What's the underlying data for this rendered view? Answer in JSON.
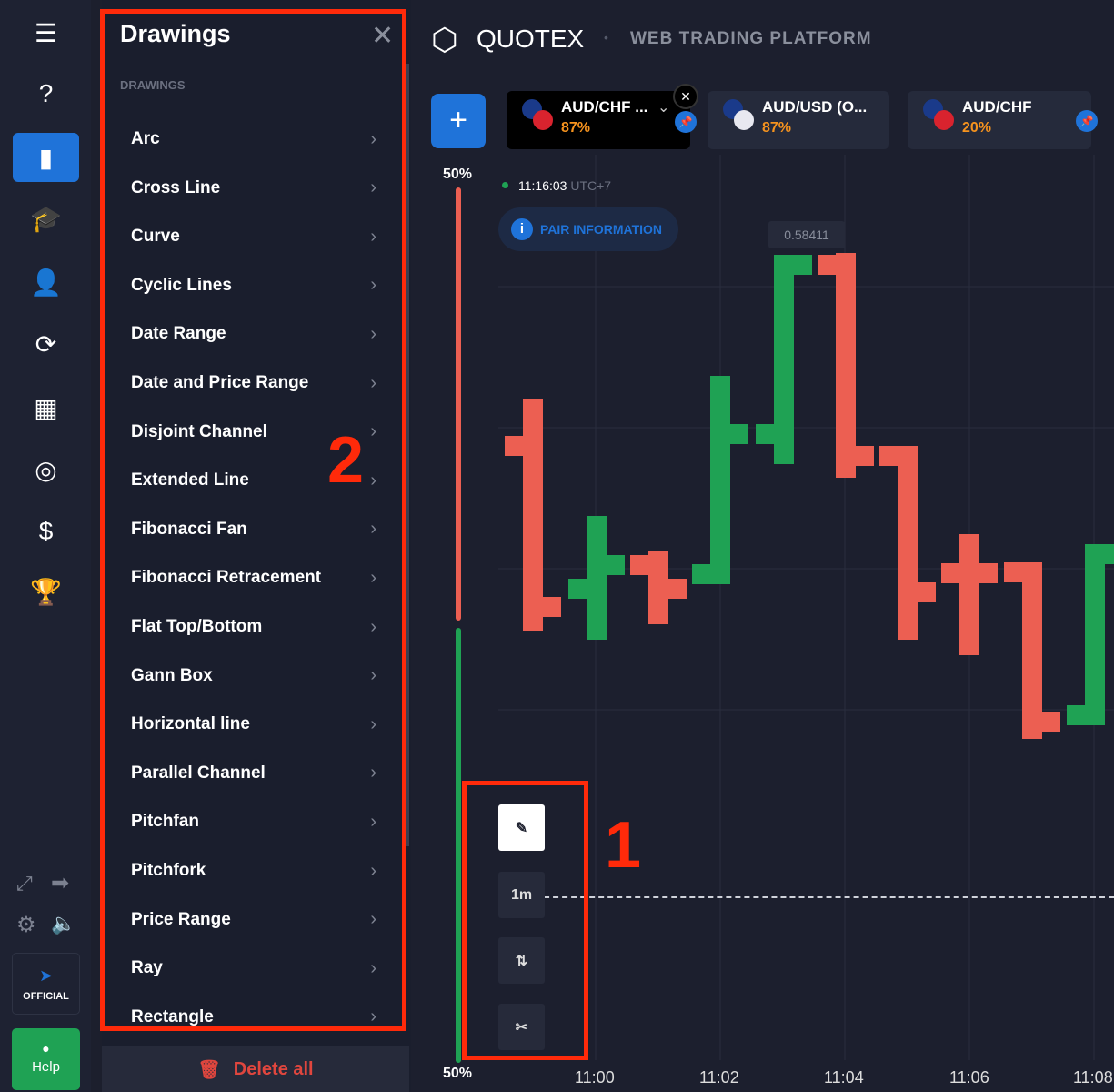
{
  "sidebar": {
    "items": [
      {
        "icon": "menu-icon",
        "glyph": "☰"
      },
      {
        "icon": "help-chat-icon",
        "glyph": "?"
      },
      {
        "icon": "chart-icon",
        "glyph": "▮"
      },
      {
        "icon": "education-icon",
        "glyph": "🎓"
      },
      {
        "icon": "user-icon",
        "glyph": "👤"
      },
      {
        "icon": "refresh-icon",
        "glyph": "⟳"
      },
      {
        "icon": "market-icon",
        "glyph": "▦"
      },
      {
        "icon": "signal-icon",
        "glyph": "◎"
      },
      {
        "icon": "coins-icon",
        "glyph": "$"
      },
      {
        "icon": "trophy-icon",
        "glyph": "🏆"
      }
    ],
    "official_label": "OFFICIAL",
    "help_label": "Help"
  },
  "panel": {
    "title": "Drawings",
    "section": "DRAWINGS",
    "items": [
      "Arc",
      "Cross Line",
      "Curve",
      "Cyclic Lines",
      "Date Range",
      "Date and Price Range",
      "Disjoint Channel",
      "Extended Line",
      "Fibonacci Fan",
      "Fibonacci Retracement",
      "Flat Top/Bottom",
      "Gann Box",
      "Horizontal line",
      "Parallel Channel",
      "Pitchfan",
      "Pitchfork",
      "Price Range",
      "Ray",
      "Rectangle"
    ],
    "delete_all": "Delete all"
  },
  "header": {
    "brand": "QUOTEX",
    "subtitle": "WEB TRADING PLATFORM"
  },
  "tabs": [
    {
      "name": "AUD/CHF ...",
      "payout": "87%"
    },
    {
      "name": "AUD/USD (O...",
      "payout": "87%"
    },
    {
      "name": "AUD/CHF",
      "payout": "20%"
    }
  ],
  "chart": {
    "time": "11:16:03",
    "tz": "UTC+7",
    "pair_info": "PAIR INFORMATION",
    "price_label": "0.58411",
    "top_pct": "50%",
    "bottom_pct": "50%",
    "timeframe": "1m",
    "x_labels": [
      "11:00",
      "11:02",
      "11:04",
      "11:06",
      "11:08"
    ]
  },
  "annotations": {
    "one": "1",
    "two": "2"
  },
  "colors": {
    "up": "#1fa254",
    "down": "#ec5f52",
    "accent": "#1f73d9",
    "payout": "#f6931e",
    "highlight": "#ff2a0a"
  }
}
